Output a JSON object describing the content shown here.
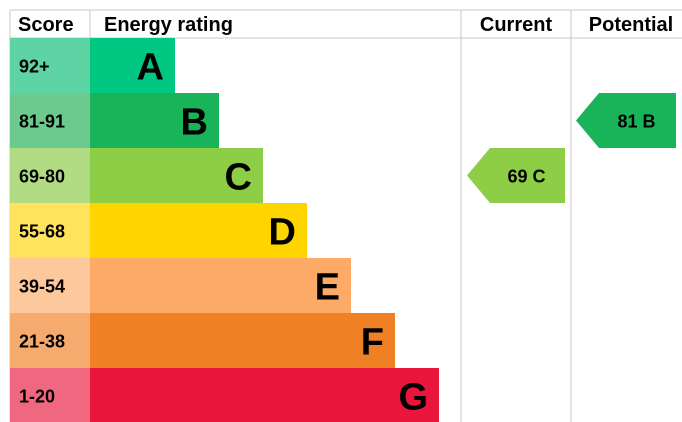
{
  "chart_data": {
    "type": "bar",
    "headers": {
      "score": "Score",
      "rating": "Energy rating",
      "current": "Current",
      "potential": "Potential"
    },
    "bands": [
      {
        "score": "92+",
        "letter": "A",
        "color": "#00c781",
        "score_color": "#5ed3a3"
      },
      {
        "score": "81-91",
        "letter": "B",
        "color": "#19b459",
        "score_color": "#6cca8f"
      },
      {
        "score": "69-80",
        "letter": "C",
        "color": "#8dce46",
        "score_color": "#b1dc83"
      },
      {
        "score": "55-68",
        "letter": "D",
        "color": "#ffd500",
        "score_color": "#ffe35c"
      },
      {
        "score": "39-54",
        "letter": "E",
        "color": "#fcaa65",
        "score_color": "#fdc89b"
      },
      {
        "score": "21-38",
        "letter": "F",
        "color": "#ef8023",
        "score_color": "#f5ab6e"
      },
      {
        "score": "1-20",
        "letter": "G",
        "color": "#e9153b",
        "score_color": "#f0687f"
      }
    ],
    "current": {
      "value": 69,
      "letter": "C",
      "label": "69 C",
      "color": "#8dce46"
    },
    "potential": {
      "value": 81,
      "letter": "B",
      "label": "81 B",
      "color": "#19b459"
    },
    "grid_color": "#c8c8c8"
  }
}
